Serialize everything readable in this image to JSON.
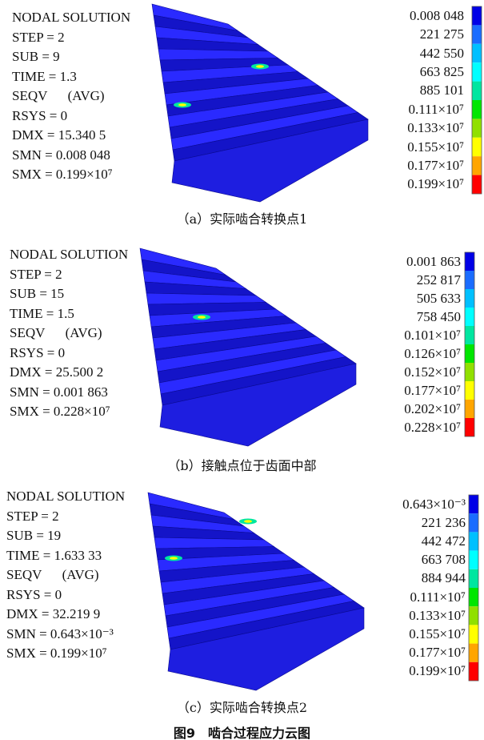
{
  "panels": [
    {
      "info": [
        "NODAL SOLUTION",
        "STEP = 2",
        "SUB = 9",
        "TIME = 1.3",
        "SEQV      (AVG)",
        "RSYS = 0",
        "DMX = 15.340 5",
        "SMN = 0.008 048",
        "SMX = 0.199×10⁷"
      ],
      "legend": [
        "0.008 048",
        "221 275",
        "442 550",
        "663 825",
        "885 101",
        "0.111×10⁷",
        "0.133×10⁷",
        "0.155×10⁷",
        "0.177×10⁷",
        "0.199×10⁷"
      ],
      "caption": "（a）实际啮合转换点1"
    },
    {
      "info": [
        "NODAL SOLUTION",
        "STEP = 2",
        "SUB = 15",
        "TIME = 1.5",
        "SEQV      (AVG)",
        "RSYS = 0",
        "DMX = 25.500 2",
        "SMN = 0.001 863",
        "SMX = 0.228×10⁷"
      ],
      "legend": [
        "0.001 863",
        "252 817",
        "505 633",
        "758 450",
        "0.101×10⁷",
        "0.126×10⁷",
        "0.152×10⁷",
        "0.177×10⁷",
        "0.202×10⁷",
        "0.228×10⁷"
      ],
      "caption": "（b）接触点位于齿面中部"
    },
    {
      "info": [
        "NODAL SOLUTION",
        "STEP = 2",
        "SUB = 19",
        "TIME = 1.633 33",
        "SEQV      (AVG)",
        "RSYS = 0",
        "DMX = 32.219 9",
        "SMN = 0.643×10⁻³",
        "SMX = 0.199×10⁷"
      ],
      "legend": [
        "0.643×10⁻³",
        "221 236",
        "442 472",
        "663 708",
        "884 944",
        "0.111×10⁷",
        "0.133×10⁷",
        "0.155×10⁷",
        "0.177×10⁷",
        "0.199×10⁷"
      ],
      "caption": "（c）实际啮合转换点2"
    }
  ],
  "figure_title": "图9　啮合过程应力云图"
}
